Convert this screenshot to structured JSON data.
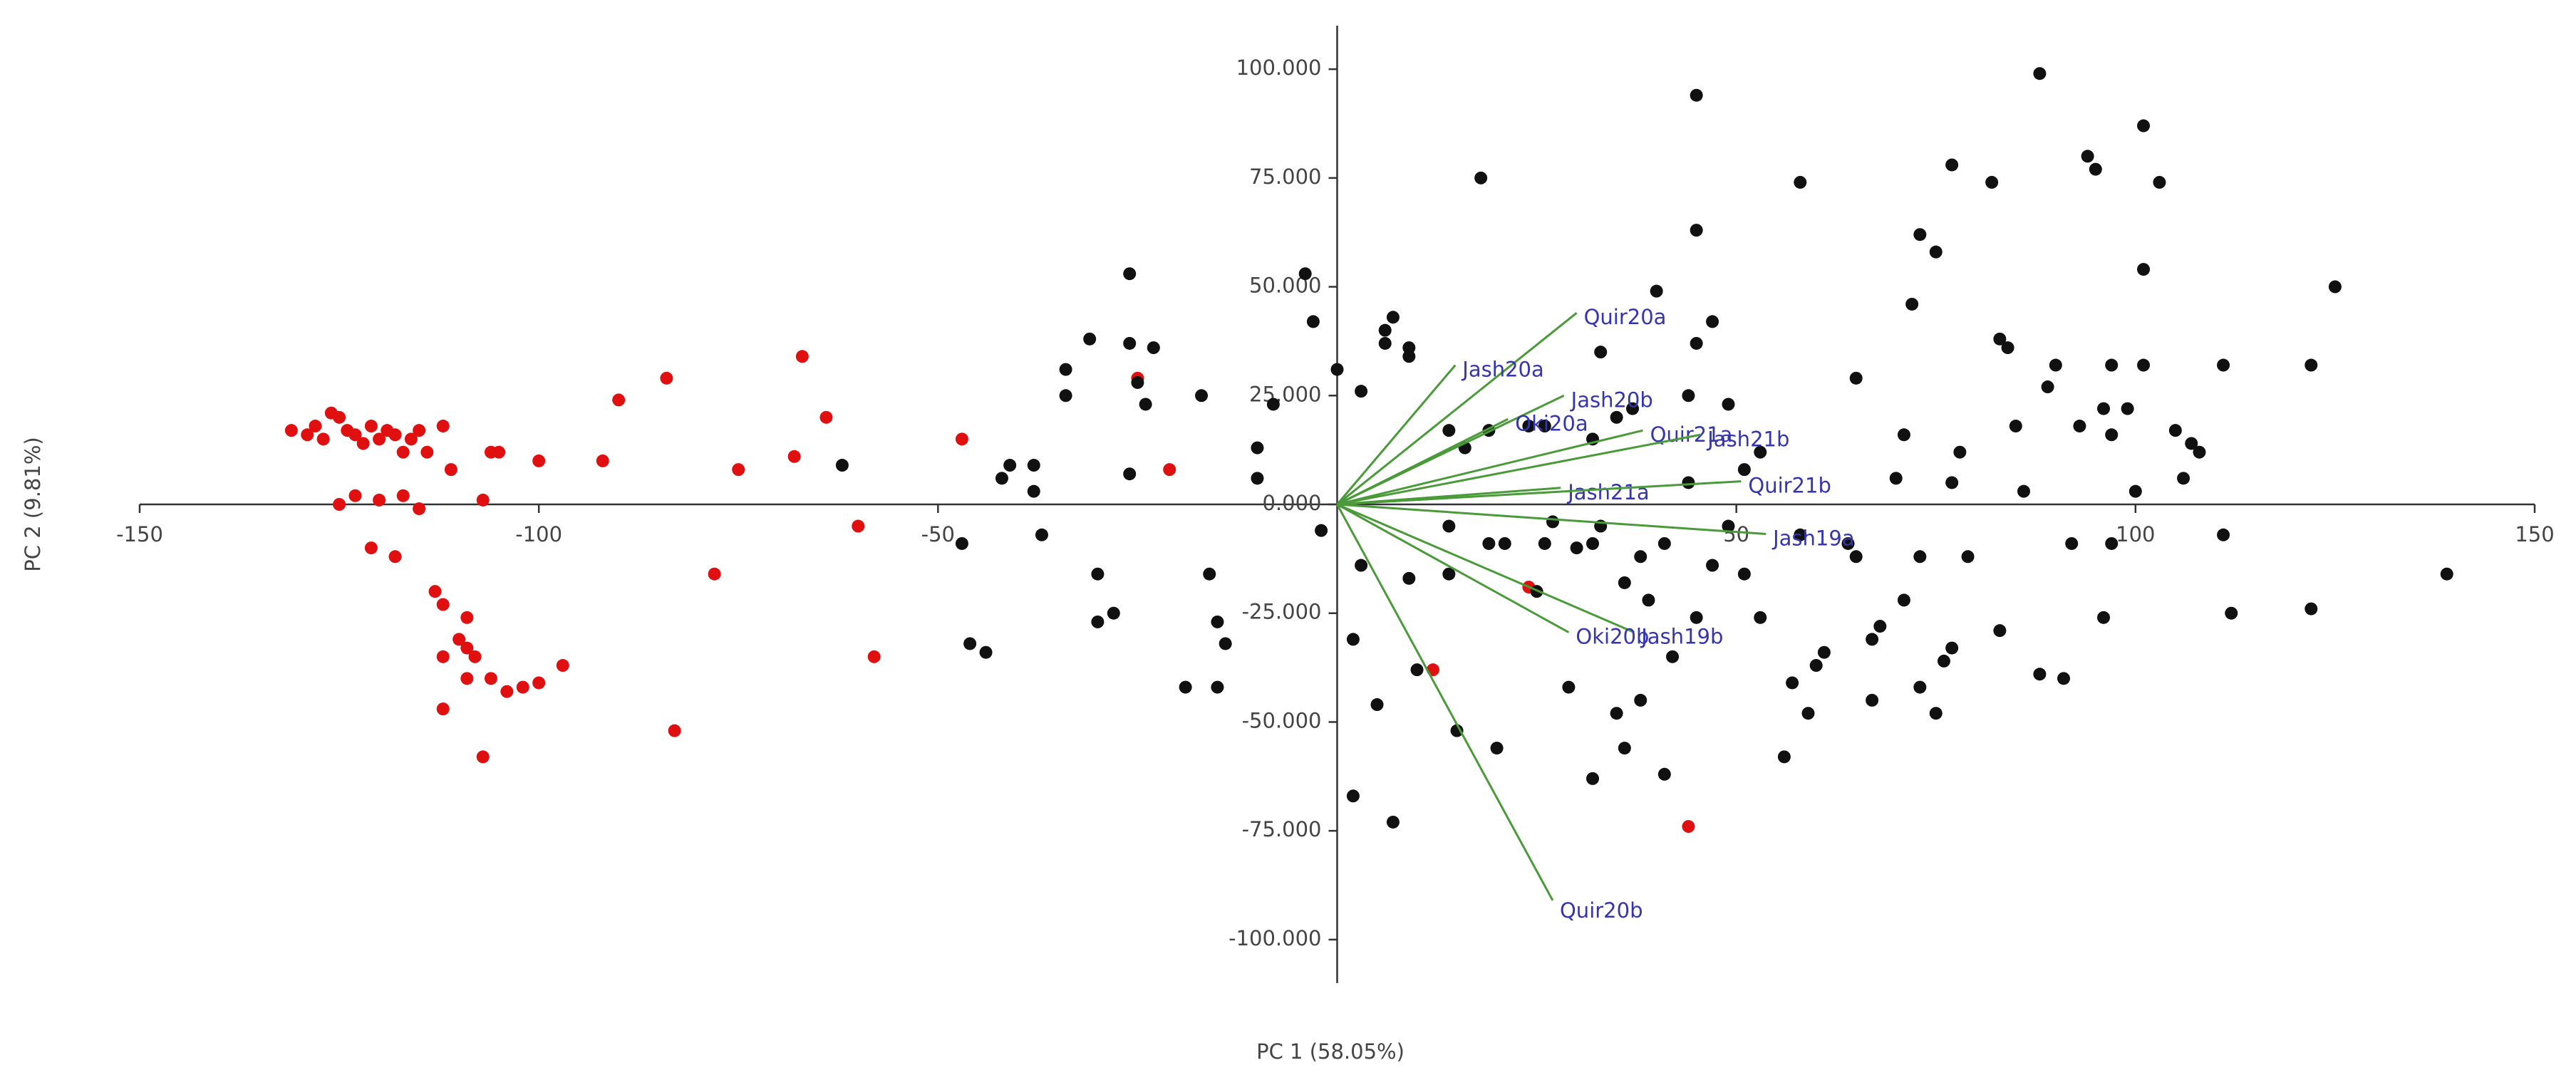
{
  "chart_data": {
    "type": "biplot",
    "x_label": "PC 1 (58.05%)",
    "y_label": "PC 2 (9.81%)",
    "xlim": [
      -150,
      150
    ],
    "ylim": [
      -110,
      110
    ],
    "xticks": [
      -150,
      -100,
      -50,
      50,
      100,
      150
    ],
    "yticks": [
      {
        "value": 100,
        "label": "100.000"
      },
      {
        "value": 75,
        "label": "75.000"
      },
      {
        "value": 50,
        "label": "50.000"
      },
      {
        "value": 25,
        "label": "25.000"
      },
      {
        "value": 0,
        "label": "0.000"
      },
      {
        "value": -25,
        "label": "-25.000"
      },
      {
        "value": -50,
        "label": "-50.000"
      },
      {
        "value": -75,
        "label": "-75.000"
      },
      {
        "value": -100,
        "label": "-100.000"
      }
    ],
    "loading_color": "#4a9a3a",
    "loading_label_color": "#3535b0",
    "loadings": [
      {
        "name": "Quir20a",
        "x": 30,
        "y": 44
      },
      {
        "name": "Jash20a",
        "x": 14.8,
        "y": 32
      },
      {
        "name": "Jash20b",
        "x": 28.4,
        "y": 25
      },
      {
        "name": "Oki20a",
        "x": 21.4,
        "y": 19.6
      },
      {
        "name": "Quir21a",
        "x": 38.3,
        "y": 17
      },
      {
        "name": "Jash21b",
        "x": 45.5,
        "y": 16
      },
      {
        "name": "Jash21a",
        "x": 28,
        "y": 3.8
      },
      {
        "name": "Quir21b",
        "x": 50.6,
        "y": 5.3
      },
      {
        "name": "Jash19a",
        "x": 53.7,
        "y": -6.8
      },
      {
        "name": "Jash19b",
        "x": 37.2,
        "y": -29.4
      },
      {
        "name": "Oki20b",
        "x": 29,
        "y": -29.4
      },
      {
        "name": "Quir20b",
        "x": 27,
        "y": -91
      }
    ],
    "series": [
      {
        "color": "#e01010",
        "x": [
          -131,
          -129,
          -128,
          -127,
          -126,
          -125,
          -124,
          -123,
          -122,
          -121,
          -120,
          -119,
          -118,
          -117,
          -116,
          -115,
          -114,
          -112,
          -111,
          -106,
          -105,
          -100,
          -92,
          -90,
          -84,
          -75,
          -68,
          -67,
          -64,
          -60,
          -58,
          -47,
          -25,
          -21,
          -125,
          -123,
          -120,
          -117,
          -115,
          -107,
          -121,
          -118,
          -113,
          -112,
          -109,
          -110,
          -109,
          -108,
          -112,
          -106,
          -104,
          -102,
          -100,
          -97,
          -112,
          -107,
          -83,
          -78,
          -109,
          24,
          12,
          44
        ],
        "y": [
          17,
          16,
          18,
          15,
          21,
          20,
          17,
          16,
          14,
          18,
          15,
          17,
          16,
          12,
          15,
          17,
          12,
          18,
          8,
          12,
          12,
          10,
          10,
          24,
          29,
          8,
          11,
          34,
          20,
          -5,
          -35,
          15,
          29,
          8,
          0,
          2,
          1,
          2,
          -1,
          1,
          -10,
          -12,
          -20,
          -23,
          -26,
          -31,
          -33,
          -35,
          -35,
          -40,
          -43,
          -42,
          -41,
          -37,
          -47,
          -58,
          -52,
          -16,
          -40,
          -19,
          -38,
          -74
        ]
      },
      {
        "color": "#111111",
        "x": [
          -26,
          -26,
          -23,
          -25,
          -24,
          -17,
          -8,
          -10,
          -10,
          -26,
          -31,
          -34,
          -34,
          -38,
          -41,
          -42,
          -38,
          -37,
          -47,
          -62,
          -4,
          -3,
          -16,
          -30,
          -30,
          -28,
          -15,
          -14,
          -19,
          -15,
          -46,
          -44,
          -2,
          94,
          95,
          101,
          103,
          88,
          101,
          125,
          82,
          77,
          73,
          75,
          72,
          83,
          84,
          90,
          97,
          101,
          111,
          122,
          89,
          96,
          99,
          105,
          107,
          108,
          106,
          100,
          93,
          97,
          85,
          78,
          71,
          70,
          77,
          86,
          92,
          97,
          111,
          139,
          112,
          122,
          96,
          88,
          91,
          83,
          77,
          76,
          73,
          75,
          67,
          61,
          60,
          57,
          56,
          59,
          67,
          68,
          71,
          79,
          73,
          65,
          64,
          58,
          58,
          65,
          47,
          45,
          45,
          45,
          44,
          49,
          53,
          51,
          49,
          51,
          53,
          45,
          47,
          41,
          38,
          36,
          39,
          42,
          35,
          36,
          32,
          41,
          38,
          29,
          26,
          30,
          32,
          33,
          27,
          21,
          19,
          25,
          20,
          15,
          10,
          7,
          2,
          5,
          2,
          3,
          9,
          14,
          14,
          40,
          37,
          35,
          32,
          33,
          26,
          24,
          19,
          16,
          14,
          9,
          7,
          6,
          9,
          6,
          18,
          0,
          3,
          44
        ],
        "y": [
          53,
          37,
          36,
          28,
          23,
          25,
          23,
          13,
          6,
          7,
          38,
          31,
          25,
          9,
          9,
          6,
          3,
          -7,
          -9,
          9,
          53,
          42,
          -16,
          -16,
          -27,
          -25,
          -27,
          -32,
          -42,
          -42,
          -32,
          -34,
          -6,
          80,
          77,
          87,
          74,
          99,
          54,
          50,
          74,
          78,
          62,
          58,
          46,
          38,
          36,
          32,
          32,
          32,
          32,
          32,
          27,
          22,
          22,
          17,
          14,
          12,
          6,
          3,
          18,
          16,
          18,
          12,
          16,
          6,
          5,
          3,
          -9,
          -9,
          -7,
          -16,
          -25,
          -24,
          -26,
          -39,
          -40,
          -29,
          -33,
          -36,
          -42,
          -48,
          -45,
          -34,
          -37,
          -41,
          -58,
          -48,
          -31,
          -28,
          -22,
          -12,
          -12,
          -12,
          -9,
          -7,
          74,
          29,
          42,
          37,
          94,
          63,
          25,
          23,
          12,
          8,
          -5,
          -16,
          -26,
          -26,
          -14,
          -9,
          -12,
          -18,
          -22,
          -35,
          -48,
          -56,
          -63,
          -62,
          -45,
          -42,
          -9,
          -10,
          -9,
          -5,
          -4,
          -9,
          -9,
          -20,
          -56,
          -52,
          -38,
          -73,
          -67,
          -46,
          -31,
          -14,
          -17,
          -5,
          -16,
          49,
          22,
          20,
          15,
          35,
          18,
          18,
          17,
          13,
          17,
          34,
          43,
          40,
          36,
          37,
          75,
          31,
          26,
          5
        ]
      }
    ]
  }
}
